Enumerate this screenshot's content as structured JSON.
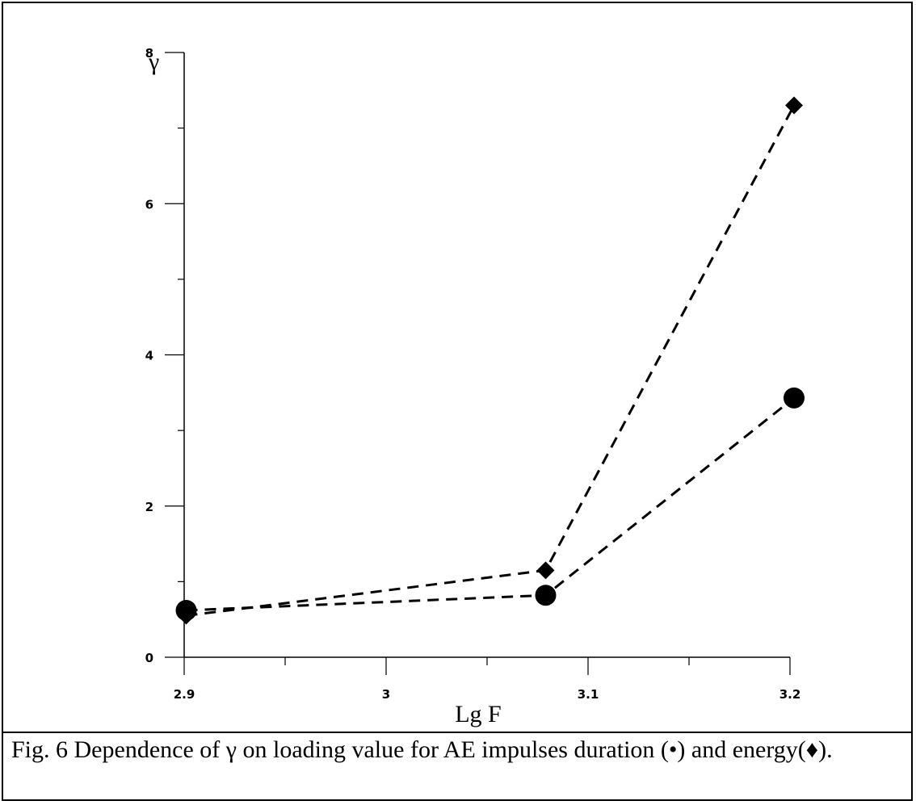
{
  "caption": "Fig. 6 Dependence of γ on loading value for AE impulses duration (•) and energy(♦).",
  "chart_data": {
    "type": "line",
    "xlabel": "Lg F",
    "ylabel": "γ",
    "xlim": [
      2.9,
      3.2
    ],
    "ylim": [
      0,
      8
    ],
    "x_ticks": [
      "2.9",
      "3",
      "3.1",
      "3.2"
    ],
    "x_tick_values": [
      2.9,
      3.0,
      3.1,
      3.2
    ],
    "y_ticks": [
      "0",
      "2",
      "4",
      "6",
      "8"
    ],
    "y_tick_values": [
      0,
      2,
      4,
      6,
      8
    ],
    "line_style": "dashed",
    "grid": false,
    "series": [
      {
        "marker": "circle",
        "x": [
          2.901,
          3.079,
          3.202
        ],
        "y": [
          0.62,
          0.82,
          3.43
        ]
      },
      {
        "marker": "diamond",
        "x": [
          2.901,
          3.079,
          3.202
        ],
        "y": [
          0.55,
          1.15,
          7.3
        ]
      }
    ],
    "colors": {
      "ink": "#000000",
      "background": "#ffffff"
    }
  }
}
